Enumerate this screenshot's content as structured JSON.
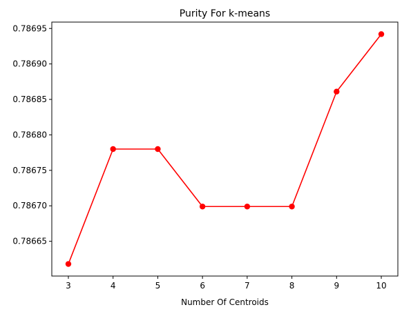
{
  "chart_data": {
    "type": "line",
    "title": "Purity For k-means",
    "xlabel": "Number Of Centroids",
    "ylabel": "",
    "x": [
      3,
      4,
      5,
      6,
      7,
      8,
      9,
      10
    ],
    "series": [
      {
        "values": [
          0.786618,
          0.78678,
          0.78678,
          0.786699,
          0.786699,
          0.786699,
          0.786861,
          0.786942
        ],
        "color": "#ff0000",
        "marker": "circle"
      }
    ],
    "xlim": [
      2.6295,
      10.3705
    ],
    "ylim": [
      0.786601,
      0.786959
    ],
    "xticks": [
      3,
      4,
      5,
      6,
      7,
      8,
      9,
      10
    ],
    "xtick_labels": [
      "3",
      "4",
      "5",
      "6",
      "7",
      "8",
      "9",
      "10"
    ],
    "yticks": [
      0.78665,
      0.7867,
      0.78675,
      0.7868,
      0.78685,
      0.7869,
      0.78695
    ],
    "ytick_labels": [
      "0.78665",
      "0.78670",
      "0.78675",
      "0.78680",
      "0.78685",
      "0.78690",
      "0.78695"
    ],
    "grid": false,
    "legend": "none"
  }
}
